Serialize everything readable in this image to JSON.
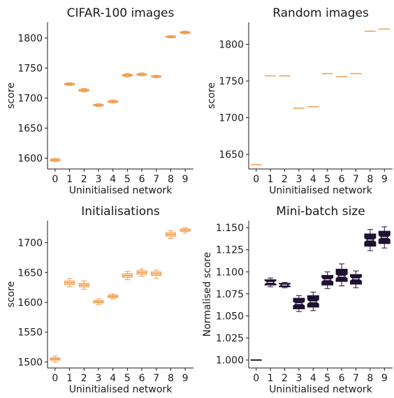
{
  "chart_data": [
    {
      "type": "box",
      "title": "CIFAR-100 images",
      "xlabel": "Uninitialised network",
      "ylabel": "score",
      "categories": [
        "0",
        "1",
        "2",
        "3",
        "4",
        "5",
        "6",
        "7",
        "8",
        "9"
      ],
      "ylim": [
        1582,
        1826
      ],
      "yticks": [
        1600,
        1650,
        1700,
        1750,
        1800
      ],
      "ytick_labels": [
        "1600",
        "1650",
        "1700",
        "1750",
        "1800"
      ],
      "color": "#f39c4e",
      "boxes": [
        {
          "median": 1597,
          "q1": 1595.5,
          "q3": 1598.5,
          "whislo": 1594.5,
          "whishi": 1599.5
        },
        {
          "median": 1723,
          "q1": 1722,
          "q3": 1724.5,
          "whislo": 1721,
          "whishi": 1725.5
        },
        {
          "median": 1713,
          "q1": 1711.5,
          "q3": 1714.5,
          "whislo": 1710,
          "whishi": 1716
        },
        {
          "median": 1688,
          "q1": 1687,
          "q3": 1689.5,
          "whislo": 1686,
          "whishi": 1690.5
        },
        {
          "median": 1694,
          "q1": 1693,
          "q3": 1695.5,
          "whislo": 1692,
          "whishi": 1697
        },
        {
          "median": 1738,
          "q1": 1736.5,
          "q3": 1739.5,
          "whislo": 1735,
          "whishi": 1741
        },
        {
          "median": 1739,
          "q1": 1738,
          "q3": 1740.5,
          "whislo": 1737,
          "whishi": 1742
        },
        {
          "median": 1736,
          "q1": 1735,
          "q3": 1737,
          "whislo": 1734,
          "whishi": 1738
        },
        {
          "median": 1802,
          "q1": 1801,
          "q3": 1803,
          "whislo": 1800,
          "whishi": 1804
        },
        {
          "median": 1809,
          "q1": 1808,
          "q3": 1810.5,
          "whislo": 1807,
          "whishi": 1811.5
        }
      ]
    },
    {
      "type": "box",
      "title": "Random images",
      "xlabel": "Uninitialised network",
      "ylabel": "score",
      "categories": [
        "0",
        "1",
        "2",
        "3",
        "4",
        "5",
        "6",
        "7",
        "8",
        "9"
      ],
      "ylim": [
        1630,
        1830
      ],
      "yticks": [
        1650,
        1700,
        1750,
        1800
      ],
      "ytick_labels": [
        "1650",
        "1700",
        "1750",
        "1800"
      ],
      "color": "#f39c4e",
      "boxes": [
        {
          "median": 1636,
          "q1": 1636,
          "q3": 1636,
          "whislo": 1636,
          "whishi": 1636
        },
        {
          "median": 1757,
          "q1": 1757,
          "q3": 1757,
          "whislo": 1757,
          "whishi": 1757
        },
        {
          "median": 1757,
          "q1": 1757,
          "q3": 1757,
          "whislo": 1757,
          "whishi": 1757
        },
        {
          "median": 1713,
          "q1": 1713,
          "q3": 1713,
          "whislo": 1713,
          "whishi": 1713
        },
        {
          "median": 1715,
          "q1": 1715,
          "q3": 1715,
          "whislo": 1715,
          "whishi": 1715
        },
        {
          "median": 1760,
          "q1": 1760,
          "q3": 1760,
          "whislo": 1760,
          "whishi": 1760
        },
        {
          "median": 1756,
          "q1": 1756,
          "q3": 1756,
          "whislo": 1756,
          "whishi": 1756
        },
        {
          "median": 1760,
          "q1": 1760,
          "q3": 1760,
          "whislo": 1760,
          "whishi": 1760
        },
        {
          "median": 1818,
          "q1": 1818,
          "q3": 1818,
          "whislo": 1818,
          "whishi": 1818
        },
        {
          "median": 1821,
          "q1": 1821,
          "q3": 1821,
          "whislo": 1821,
          "whishi": 1821
        }
      ]
    },
    {
      "type": "box",
      "title": "Initialisations",
      "xlabel": "Uninitialised network",
      "ylabel": "score",
      "categories": [
        "0",
        "1",
        "2",
        "3",
        "4",
        "5",
        "6",
        "7",
        "8",
        "9"
      ],
      "ylim": [
        1490,
        1737
      ],
      "yticks": [
        1500,
        1550,
        1600,
        1650,
        1700
      ],
      "ytick_labels": [
        "1500",
        "1550",
        "1600",
        "1650",
        "1700"
      ],
      "color": "#f39c4e",
      "boxes": [
        {
          "median": 1505,
          "q1": 1503,
          "q3": 1507,
          "whislo": 1500,
          "whishi": 1510
        },
        {
          "median": 1633,
          "q1": 1630,
          "q3": 1636,
          "whislo": 1626,
          "whishi": 1640
        },
        {
          "median": 1629,
          "q1": 1626,
          "q3": 1632,
          "whislo": 1622,
          "whishi": 1636
        },
        {
          "median": 1601,
          "q1": 1599,
          "q3": 1603,
          "whislo": 1596,
          "whishi": 1606
        },
        {
          "median": 1610,
          "q1": 1608,
          "q3": 1612,
          "whislo": 1606,
          "whishi": 1614
        },
        {
          "median": 1645,
          "q1": 1642,
          "q3": 1648,
          "whislo": 1638,
          "whishi": 1652
        },
        {
          "median": 1650,
          "q1": 1647,
          "q3": 1653,
          "whislo": 1644,
          "whishi": 1656
        },
        {
          "median": 1648,
          "q1": 1645,
          "q3": 1651,
          "whislo": 1640,
          "whishi": 1654
        },
        {
          "median": 1714,
          "q1": 1711,
          "q3": 1717,
          "whislo": 1707,
          "whishi": 1720
        },
        {
          "median": 1721,
          "q1": 1719,
          "q3": 1723,
          "whislo": 1716,
          "whishi": 1725
        }
      ]
    },
    {
      "type": "box",
      "title": "Mini-batch size",
      "xlabel": "Uninitialised network",
      "ylabel": "Normalised score",
      "categories": [
        "0",
        "1",
        "2",
        "3",
        "4",
        "5",
        "6",
        "7",
        "8",
        "9"
      ],
      "ylim": [
        0.991,
        1.158
      ],
      "yticks": [
        1.0,
        1.025,
        1.05,
        1.075,
        1.1,
        1.125,
        1.15
      ],
      "ytick_labels": [
        "1.000",
        "1.025",
        "1.050",
        "1.075",
        "1.100",
        "1.125",
        "1.150"
      ],
      "color": "#1f1133",
      "notched": true,
      "boxes": [
        {
          "median": 1.0,
          "q1": 1.0,
          "q3": 1.0,
          "whislo": 1.0,
          "whishi": 1.0
        },
        {
          "median": 1.088,
          "q1": 1.085,
          "q3": 1.091,
          "whislo": 1.083,
          "whishi": 1.093
        },
        {
          "median": 1.085,
          "q1": 1.083,
          "q3": 1.087,
          "whislo": 1.082,
          "whishi": 1.088
        },
        {
          "median": 1.064,
          "q1": 1.058,
          "q3": 1.07,
          "whislo": 1.055,
          "whishi": 1.073
        },
        {
          "median": 1.066,
          "q1": 1.06,
          "q3": 1.073,
          "whislo": 1.056,
          "whishi": 1.077
        },
        {
          "median": 1.091,
          "q1": 1.085,
          "q3": 1.096,
          "whislo": 1.081,
          "whishi": 1.1
        },
        {
          "median": 1.095,
          "q1": 1.089,
          "q3": 1.103,
          "whislo": 1.084,
          "whishi": 1.109
        },
        {
          "median": 1.092,
          "q1": 1.086,
          "q3": 1.097,
          "whislo": 1.082,
          "whishi": 1.101
        },
        {
          "median": 1.136,
          "q1": 1.129,
          "q3": 1.143,
          "whislo": 1.124,
          "whishi": 1.148
        },
        {
          "median": 1.139,
          "q1": 1.132,
          "q3": 1.146,
          "whislo": 1.127,
          "whishi": 1.151
        }
      ]
    }
  ]
}
